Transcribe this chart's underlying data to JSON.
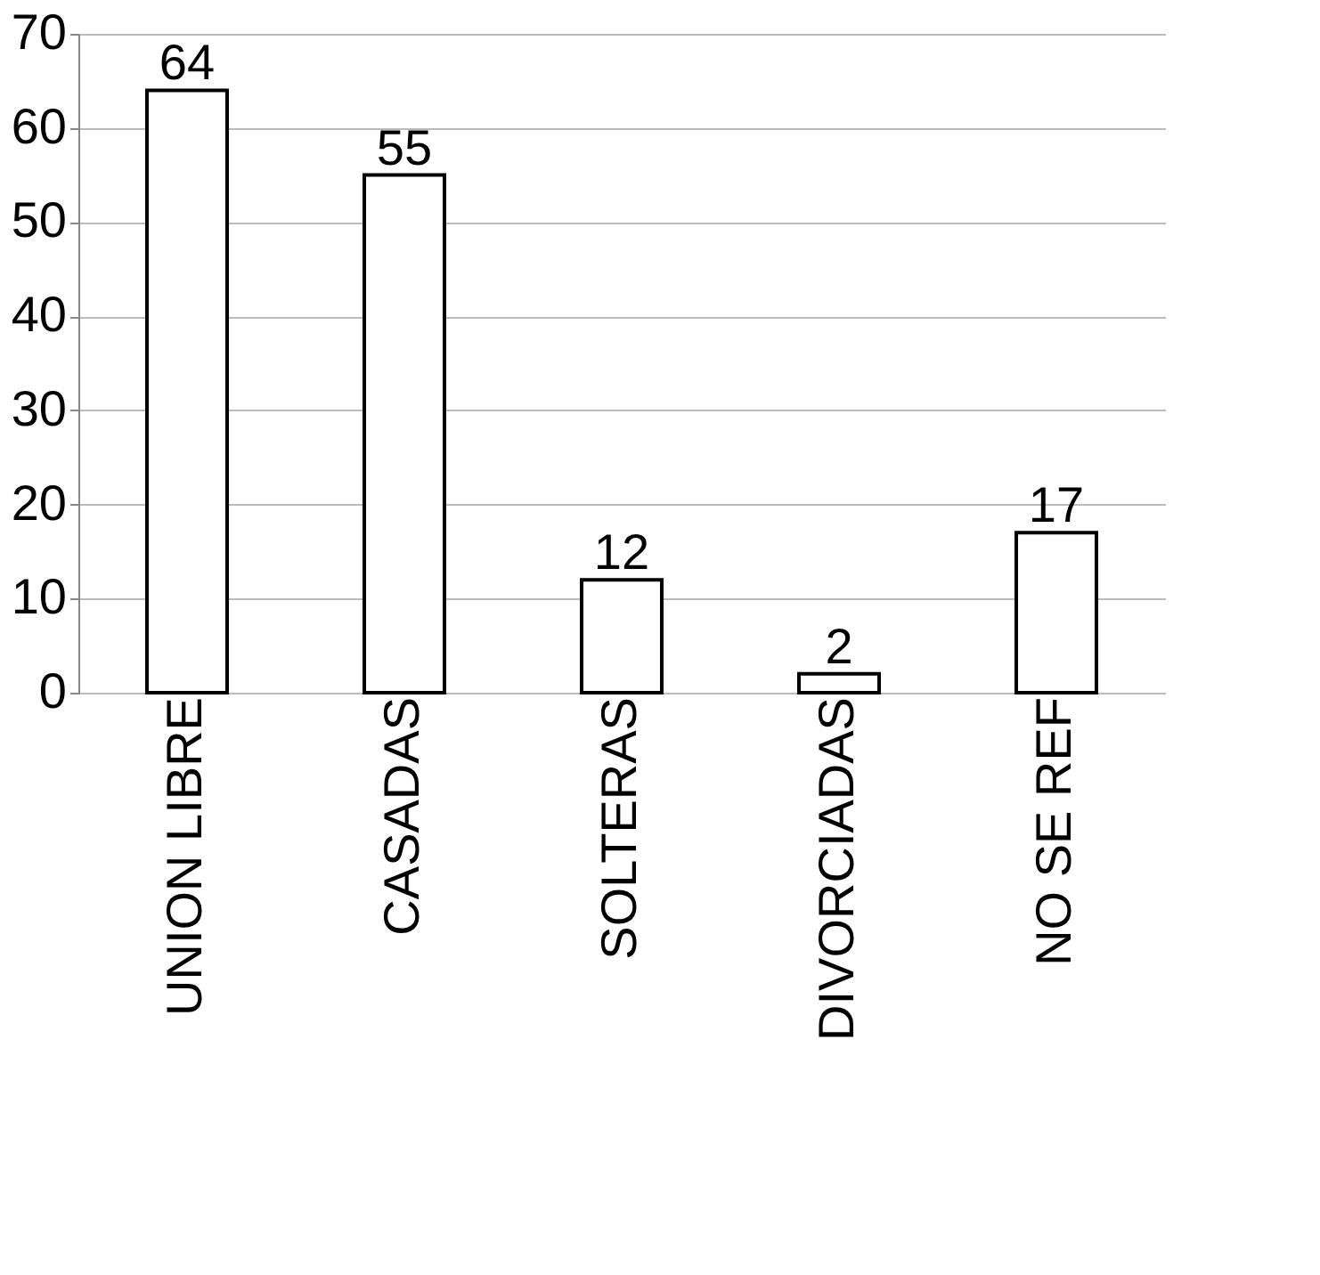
{
  "chart_data": {
    "type": "bar",
    "categories": [
      "UNION LIBRE",
      "CASADAS",
      "SOLTERAS",
      "DIVORCIADAS",
      "NO SE REF"
    ],
    "values": [
      64,
      55,
      12,
      2,
      17
    ],
    "color": "#ffffff",
    "ylim": [
      0,
      70
    ],
    "yticks": [
      0,
      10,
      20,
      30,
      40,
      50,
      60,
      70
    ],
    "grid": "y",
    "data_labels": true
  }
}
